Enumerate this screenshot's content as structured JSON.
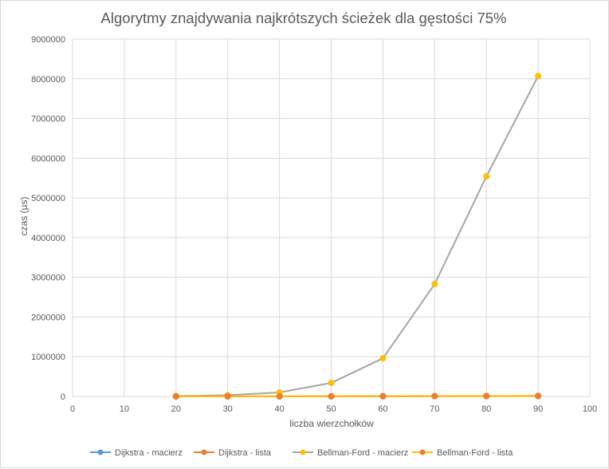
{
  "chart_data": {
    "type": "line",
    "title": "Algorytmy znajdywania najkrótszych ścieżek dla gęstości 75%",
    "xlabel": "liczba wierzchołków",
    "ylabel": "czas (µs)",
    "xlim": [
      0,
      100
    ],
    "ylim": [
      0,
      9000000
    ],
    "xticks": [
      "0",
      "10",
      "20",
      "30",
      "40",
      "50",
      "60",
      "70",
      "80",
      "90",
      "100"
    ],
    "xtick_values": [
      0,
      10,
      20,
      30,
      40,
      50,
      60,
      70,
      80,
      90,
      100
    ],
    "yticks": [
      "0",
      "1000000",
      "2000000",
      "3000000",
      "4000000",
      "5000000",
      "6000000",
      "7000000",
      "8000000",
      "9000000"
    ],
    "ytick_values": [
      0,
      1000000,
      2000000,
      3000000,
      4000000,
      5000000,
      6000000,
      7000000,
      8000000,
      9000000
    ],
    "grid": true,
    "legend_position": "bottom",
    "x": [
      20,
      30,
      40,
      50,
      60,
      70,
      80,
      90
    ],
    "series": [
      {
        "name": "Dijkstra - macierz",
        "line_color": "#5b9bd5",
        "marker_color": "#5b9bd5",
        "values": [
          500,
          1000,
          2000,
          3000,
          5000,
          7000,
          9000,
          12000
        ]
      },
      {
        "name": "Dijkstra - lista",
        "line_color": "#ed7d31",
        "marker_color": "#ed7d31",
        "values": [
          300,
          600,
          1200,
          2000,
          3000,
          4500,
          6000,
          8000
        ]
      },
      {
        "name": "Bellman-Ford - macierz",
        "line_color": "#a5a5a5",
        "marker_color": "#ffc000",
        "values": [
          10000,
          30000,
          100000,
          340000,
          960000,
          2830000,
          5540000,
          8070000
        ]
      },
      {
        "name": "Bellman-Ford - lista",
        "line_color": "#ffc000",
        "marker_color": "#ed7d31",
        "values": [
          1000,
          2000,
          4000,
          6000,
          8000,
          10000,
          12000,
          14000
        ]
      }
    ]
  }
}
